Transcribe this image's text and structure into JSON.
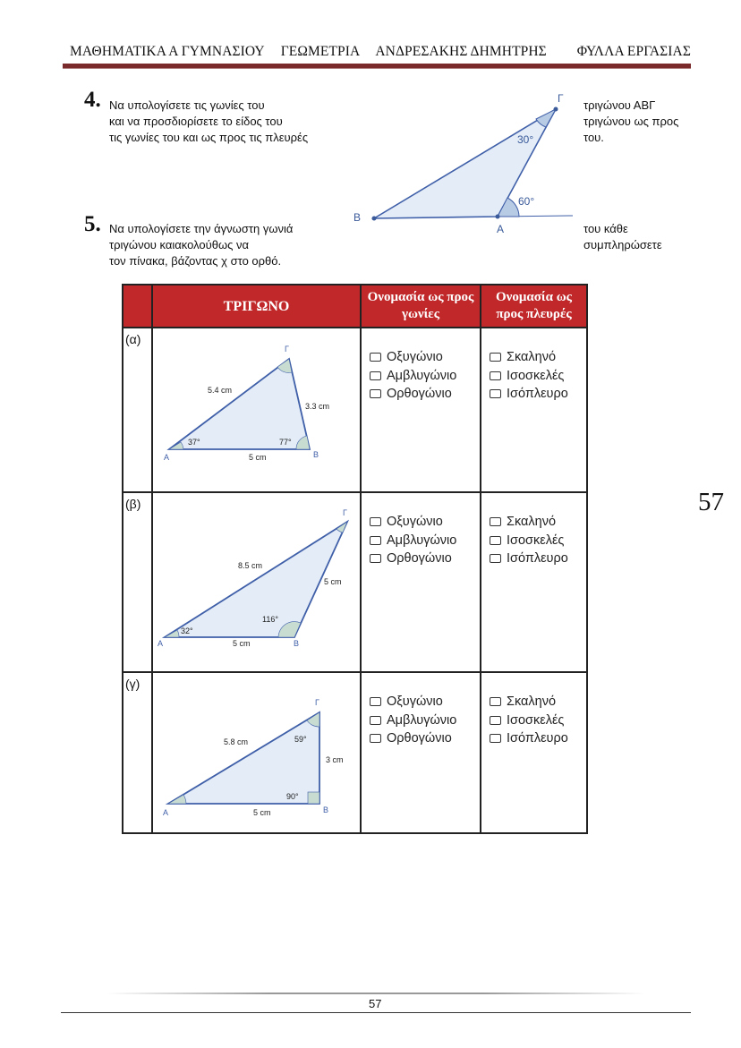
{
  "header": {
    "parts": [
      "ΜΑΘΗΜΑΤΙΚΑ  Α ΓΥΜΝΑΣΙΟΥ",
      "ΓΕΩΜΕΤΡΙΑ",
      "ΑΝΔΡΕΣΑΚΗΣ ΔΗΜΗΤΡΗΣ",
      "ΦΥΛΛΑ ΕΡΓΑΣΙΑΣ"
    ],
    "rule_color": "#7a2a2a"
  },
  "ex4": {
    "number": "4.",
    "left": [
      "Να υπολογίσετε τις γωνίες του",
      "και να προσδιορίσετε το  είδος του",
      "τις γωνίες  του και ως προς τις πλευρές"
    ],
    "right": [
      "τριγώνου   ΑΒΓ",
      "τριγώνου ως προς",
      "του."
    ],
    "figure": {
      "B": "Β",
      "A": "Α",
      "G": "Γ",
      "angle_g": "30°",
      "angle_ext": "60°"
    }
  },
  "ex5": {
    "number": "5.",
    "left": [
      "Να υπολογίσετε την άγνωστη γωνιά",
      "τριγώνου καιακολούθως να",
      "τον πίνακα, βάζοντας   χ  στο ορθό."
    ],
    "right": [
      "του κάθε",
      "συμπληρώσετε"
    ]
  },
  "table": {
    "header_color": "#c0282a",
    "headers": [
      "",
      "ΤΡΙΓΩΝΟ",
      "Ονομασία ως προς γωνίες",
      "Ονομασία ως προς πλευρές"
    ],
    "angle_options": [
      "Οξυγώνιο",
      "Αμβλυγώνιο",
      "Ορθογώνιο"
    ],
    "side_options": [
      "Σκαληνό",
      "Ισοσκελές",
      "Ισόπλευρο"
    ],
    "rows": [
      {
        "label": "(α)",
        "A": "Α",
        "B": "Β",
        "G": "Γ",
        "AG": "5.4 cm",
        "BG": "3.3 cm",
        "AB": "5 cm",
        "angle_a": "37°",
        "angle_b": "77°"
      },
      {
        "label": "(β)",
        "A": "Α",
        "B": "Β",
        "G": "Γ",
        "AG": "8.5 cm",
        "BG": "5 cm",
        "AB": "5 cm",
        "angle_a": "32°",
        "angle_b": "116°"
      },
      {
        "label": "(γ)",
        "A": "Α",
        "B": "Β",
        "G": "Γ",
        "AG": "5.8 cm",
        "BG": "3 cm",
        "AB": "5 cm",
        "angle_g": "59°",
        "angle_b": "90°"
      }
    ]
  },
  "page_number": "57",
  "footer_page_number": "57"
}
